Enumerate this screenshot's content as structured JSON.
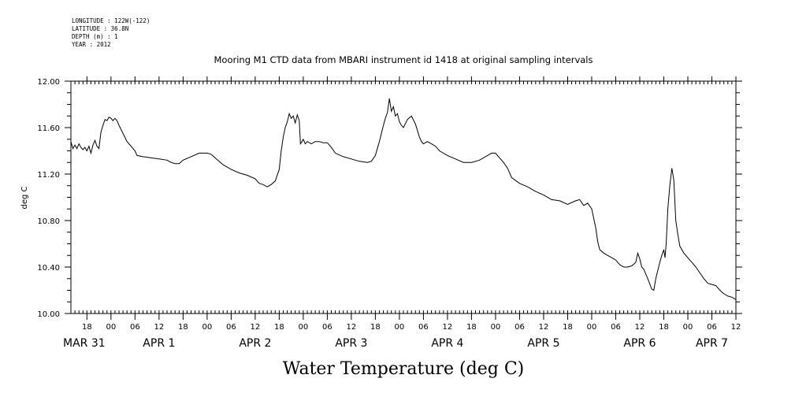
{
  "header": {
    "lines": [
      "LONGITUDE : 122W(-122)",
      "LATITUDE : 36.8N",
      "DEPTH (m) : 1",
      "YEAR : 2012"
    ]
  },
  "chart_data": {
    "type": "line",
    "title": "Mooring M1 CTD data from MBARI instrument id 1418 at original sampling intervals",
    "xlabel": "Water Temperature (deg C)",
    "ylabel": "deg C",
    "ylim": [
      10.0,
      12.0
    ],
    "yticks": [
      "10.00",
      "10.40",
      "10.80",
      "11.20",
      "11.60",
      "12.00"
    ],
    "xlim_hours": [
      -10,
      156
    ],
    "xticks": [
      {
        "h": -6,
        "label": "18"
      },
      {
        "h": 0,
        "label": "00"
      },
      {
        "h": 6,
        "label": "06"
      },
      {
        "h": 12,
        "label": "12"
      },
      {
        "h": 18,
        "label": "18"
      },
      {
        "h": 24,
        "label": "00"
      },
      {
        "h": 30,
        "label": "06"
      },
      {
        "h": 36,
        "label": "12"
      },
      {
        "h": 42,
        "label": "18"
      },
      {
        "h": 48,
        "label": "00"
      },
      {
        "h": 54,
        "label": "06"
      },
      {
        "h": 60,
        "label": "12"
      },
      {
        "h": 66,
        "label": "18"
      },
      {
        "h": 72,
        "label": "00"
      },
      {
        "h": 78,
        "label": "06"
      },
      {
        "h": 84,
        "label": "12"
      },
      {
        "h": 90,
        "label": "18"
      },
      {
        "h": 96,
        "label": "00"
      },
      {
        "h": 102,
        "label": "06"
      },
      {
        "h": 108,
        "label": "12"
      },
      {
        "h": 114,
        "label": "18"
      },
      {
        "h": 120,
        "label": "00"
      },
      {
        "h": 126,
        "label": "06"
      },
      {
        "h": 132,
        "label": "12"
      },
      {
        "h": 138,
        "label": "18"
      },
      {
        "h": 144,
        "label": "00"
      },
      {
        "h": 150,
        "label": "06"
      },
      {
        "h": 156,
        "label": "12"
      }
    ],
    "day_labels": [
      {
        "h": -10,
        "label": "MAR 31"
      },
      {
        "h": 12,
        "label": "APR  1"
      },
      {
        "h": 36,
        "label": "APR  2"
      },
      {
        "h": 60,
        "label": "APR  3"
      },
      {
        "h": 84,
        "label": "APR  4"
      },
      {
        "h": 108,
        "label": "APR  5"
      },
      {
        "h": 132,
        "label": "APR  6"
      },
      {
        "h": 150,
        "label": "APR  7"
      }
    ],
    "series": [
      {
        "points": [
          [
            -10,
            11.48
          ],
          [
            -9.5,
            11.42
          ],
          [
            -9,
            11.45
          ],
          [
            -8.5,
            11.42
          ],
          [
            -8,
            11.46
          ],
          [
            -7.5,
            11.43
          ],
          [
            -7,
            11.41
          ],
          [
            -6.5,
            11.43
          ],
          [
            -6,
            11.4
          ],
          [
            -5.5,
            11.44
          ],
          [
            -5,
            11.38
          ],
          [
            -4.5,
            11.45
          ],
          [
            -4,
            11.49
          ],
          [
            -3.5,
            11.44
          ],
          [
            -3,
            11.42
          ],
          [
            -2.5,
            11.56
          ],
          [
            -2,
            11.62
          ],
          [
            -1.5,
            11.67
          ],
          [
            -1,
            11.66
          ],
          [
            -0.5,
            11.69
          ],
          [
            0,
            11.68
          ],
          [
            0.5,
            11.66
          ],
          [
            1,
            11.68
          ],
          [
            1.5,
            11.66
          ],
          [
            2,
            11.62
          ],
          [
            3,
            11.55
          ],
          [
            4,
            11.48
          ],
          [
            5,
            11.44
          ],
          [
            6,
            11.4
          ],
          [
            6.5,
            11.36
          ],
          [
            8,
            11.35
          ],
          [
            10,
            11.34
          ],
          [
            12,
            11.33
          ],
          [
            14,
            11.32
          ],
          [
            15,
            11.3
          ],
          [
            16,
            11.29
          ],
          [
            17,
            11.29
          ],
          [
            18,
            11.32
          ],
          [
            20,
            11.35
          ],
          [
            22,
            11.38
          ],
          [
            24,
            11.38
          ],
          [
            25,
            11.37
          ],
          [
            26,
            11.34
          ],
          [
            28,
            11.28
          ],
          [
            30,
            11.24
          ],
          [
            32,
            11.21
          ],
          [
            34,
            11.19
          ],
          [
            36,
            11.16
          ],
          [
            37,
            11.12
          ],
          [
            38,
            11.11
          ],
          [
            39,
            11.09
          ],
          [
            40,
            11.11
          ],
          [
            41,
            11.14
          ],
          [
            42,
            11.24
          ],
          [
            42.5,
            11.4
          ],
          [
            43,
            11.52
          ],
          [
            43.5,
            11.6
          ],
          [
            44,
            11.65
          ],
          [
            44.5,
            11.72
          ],
          [
            45,
            11.68
          ],
          [
            45.5,
            11.7
          ],
          [
            46,
            11.64
          ],
          [
            46.5,
            11.71
          ],
          [
            47,
            11.66
          ],
          [
            47.3,
            11.46
          ],
          [
            47.7,
            11.48
          ],
          [
            48,
            11.5
          ],
          [
            48.5,
            11.46
          ],
          [
            49,
            11.48
          ],
          [
            50,
            11.46
          ],
          [
            51,
            11.48
          ],
          [
            52,
            11.48
          ],
          [
            53,
            11.47
          ],
          [
            54,
            11.47
          ],
          [
            55,
            11.43
          ],
          [
            56,
            11.38
          ],
          [
            58,
            11.35
          ],
          [
            60,
            11.33
          ],
          [
            62,
            11.31
          ],
          [
            64,
            11.3
          ],
          [
            65,
            11.31
          ],
          [
            66,
            11.36
          ],
          [
            67,
            11.48
          ],
          [
            68,
            11.62
          ],
          [
            68.5,
            11.68
          ],
          [
            69,
            11.73
          ],
          [
            69.5,
            11.85
          ],
          [
            70,
            11.74
          ],
          [
            70.5,
            11.78
          ],
          [
            71,
            11.7
          ],
          [
            71.5,
            11.72
          ],
          [
            72,
            11.65
          ],
          [
            72.5,
            11.62
          ],
          [
            73,
            11.6
          ],
          [
            74,
            11.67
          ],
          [
            75,
            11.7
          ],
          [
            76,
            11.63
          ],
          [
            77,
            11.52
          ],
          [
            77.5,
            11.48
          ],
          [
            78,
            11.46
          ],
          [
            79,
            11.48
          ],
          [
            80,
            11.46
          ],
          [
            81,
            11.44
          ],
          [
            82,
            11.4
          ],
          [
            84,
            11.36
          ],
          [
            86,
            11.33
          ],
          [
            88,
            11.3
          ],
          [
            90,
            11.3
          ],
          [
            92,
            11.32
          ],
          [
            94,
            11.36
          ],
          [
            95,
            11.38
          ],
          [
            96,
            11.38
          ],
          [
            97,
            11.34
          ],
          [
            98,
            11.3
          ],
          [
            99,
            11.25
          ],
          [
            100,
            11.17
          ],
          [
            102,
            11.12
          ],
          [
            104,
            11.09
          ],
          [
            106,
            11.05
          ],
          [
            108,
            11.02
          ],
          [
            110,
            10.98
          ],
          [
            112,
            10.97
          ],
          [
            114,
            10.94
          ],
          [
            116,
            10.97
          ],
          [
            117,
            10.98
          ],
          [
            118,
            10.93
          ],
          [
            119,
            10.95
          ],
          [
            120,
            10.9
          ],
          [
            120.5,
            10.82
          ],
          [
            121,
            10.74
          ],
          [
            121.5,
            10.62
          ],
          [
            122,
            10.55
          ],
          [
            123,
            10.52
          ],
          [
            124,
            10.5
          ],
          [
            125,
            10.48
          ],
          [
            126,
            10.46
          ],
          [
            127,
            10.42
          ],
          [
            128,
            10.4
          ],
          [
            129,
            10.4
          ],
          [
            130,
            10.41
          ],
          [
            131,
            10.44
          ],
          [
            131.5,
            10.52
          ],
          [
            132,
            10.47
          ],
          [
            132.5,
            10.4
          ],
          [
            133,
            10.38
          ],
          [
            134,
            10.3
          ],
          [
            135,
            10.21
          ],
          [
            135.5,
            10.2
          ],
          [
            136,
            10.3
          ],
          [
            137,
            10.44
          ],
          [
            137.5,
            10.5
          ],
          [
            138,
            10.55
          ],
          [
            138.3,
            10.48
          ],
          [
            138.6,
            10.6
          ],
          [
            139,
            10.9
          ],
          [
            139.5,
            11.1
          ],
          [
            140,
            11.25
          ],
          [
            140.5,
            11.15
          ],
          [
            141,
            10.8
          ],
          [
            141.5,
            10.68
          ],
          [
            142,
            10.58
          ],
          [
            143,
            10.52
          ],
          [
            144,
            10.48
          ],
          [
            145,
            10.44
          ],
          [
            146,
            10.4
          ],
          [
            147,
            10.35
          ],
          [
            148,
            10.3
          ],
          [
            149,
            10.26
          ],
          [
            150,
            10.25
          ],
          [
            151,
            10.24
          ],
          [
            152,
            10.2
          ],
          [
            153,
            10.17
          ],
          [
            154,
            10.15
          ],
          [
            155,
            10.14
          ],
          [
            156,
            10.12
          ]
        ]
      }
    ]
  }
}
